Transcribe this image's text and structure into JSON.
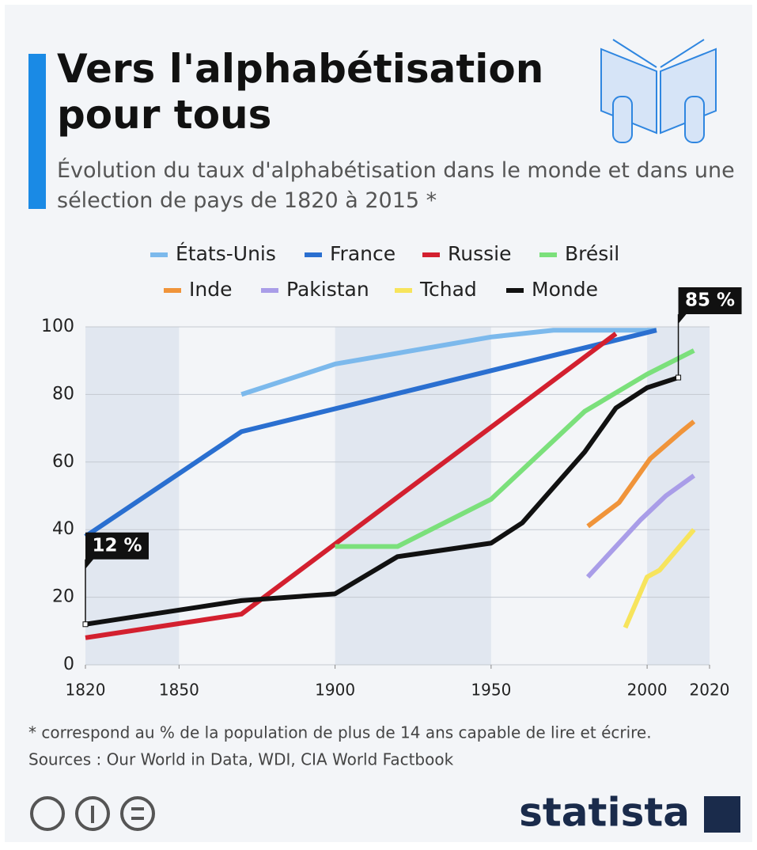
{
  "chart_data": {
    "type": "line",
    "title": "Vers l'alphabétisation pour tous",
    "subtitle": "Évolution du taux d'alphabétisation dans le monde et dans une sélection de pays de 1820 à 2015 *",
    "footnote": "* correspond au % de la population de plus de 14 ans capable de lire et écrire.",
    "source": "Sources : Our World in Data, WDI, CIA World Factbook",
    "brand": "statista",
    "xlim": [
      1820,
      2020
    ],
    "xticks": [
      1820,
      1850,
      1900,
      1950,
      2000,
      2020
    ],
    "ylim": [
      0,
      100
    ],
    "yticks": [
      0,
      20,
      40,
      60,
      80,
      100
    ],
    "grid": true,
    "series": [
      {
        "name": "États-Unis",
        "color": "#7cb9ec",
        "x": [
          1870,
          1900,
          1950,
          1970,
          2000,
          2003
        ],
        "values": [
          80,
          89,
          97,
          99,
          99,
          99
        ]
      },
      {
        "name": "France",
        "color": "#2a6fd0",
        "x": [
          1820,
          1870,
          2003
        ],
        "values": [
          38,
          69,
          99
        ]
      },
      {
        "name": "Russie",
        "color": "#d3202f",
        "x": [
          1820,
          1870,
          1990
        ],
        "values": [
          8,
          15,
          98
        ]
      },
      {
        "name": "Brésil",
        "color": "#7be07b",
        "x": [
          1900,
          1920,
          1950,
          1980,
          2000,
          2015
        ],
        "values": [
          35,
          35,
          49,
          75,
          86,
          93
        ]
      },
      {
        "name": "Inde",
        "color": "#f0943a",
        "x": [
          1981,
          1991,
          2001,
          2011,
          2015
        ],
        "values": [
          41,
          48,
          61,
          69,
          72
        ]
      },
      {
        "name": "Pakistan",
        "color": "#a99de8",
        "x": [
          1981,
          1998,
          2006,
          2015
        ],
        "values": [
          26,
          43,
          50,
          56
        ]
      },
      {
        "name": "Tchad",
        "color": "#f7e45c",
        "x": [
          1993,
          2000,
          2004,
          2015
        ],
        "values": [
          11,
          26,
          28,
          40
        ]
      },
      {
        "name": "Monde",
        "color": "#111111",
        "x": [
          1820,
          1870,
          1900,
          1920,
          1950,
          1960,
          1980,
          1990,
          2000,
          2010
        ],
        "values": [
          12,
          19,
          21,
          32,
          36,
          42,
          63,
          76,
          82,
          85
        ],
        "value_labels": [
          "12 %",
          null,
          null,
          null,
          null,
          null,
          null,
          null,
          null,
          "85 %"
        ]
      }
    ]
  }
}
